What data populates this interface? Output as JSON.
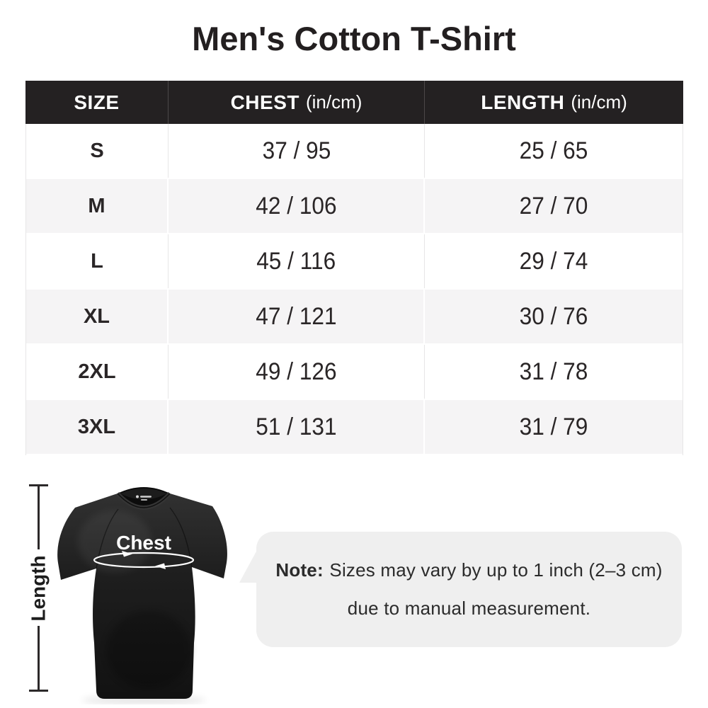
{
  "title": "Men's Cotton T-Shirt",
  "table": {
    "headers": [
      {
        "main": "SIZE",
        "sub": ""
      },
      {
        "main": "CHEST",
        "sub": "(in/cm)"
      },
      {
        "main": "LENGTH",
        "sub": "(in/cm)"
      }
    ],
    "rows": [
      {
        "size": "S",
        "chest": "37 / 95",
        "length": "25 / 65"
      },
      {
        "size": "M",
        "chest": "42 / 106",
        "length": "27 / 70"
      },
      {
        "size": "L",
        "chest": "45 / 116",
        "length": "29 / 74"
      },
      {
        "size": "XL",
        "chest": "47 / 121",
        "length": "30 / 76"
      },
      {
        "size": "2XL",
        "chest": "49 / 126",
        "length": "31 / 78"
      },
      {
        "size": "3XL",
        "chest": "51 / 131",
        "length": "31 / 79"
      }
    ]
  },
  "diagram": {
    "chest_label": "Chest",
    "length_label": "Length"
  },
  "note": {
    "prefix": "Note:",
    "line1": "Sizes may vary by up to 1 inch (2–3 cm)",
    "line2": "due to manual measurement."
  },
  "colors": {
    "header_bg": "#242122",
    "row_alt_bg": "#f5f4f5",
    "bubble_bg": "#efefef",
    "cell_text": "#2a2627",
    "shirt": "#1b1b1b",
    "measure_line": "#ffffff"
  },
  "chart_data": {
    "type": "table",
    "title": "Men's Cotton T-Shirt",
    "columns": [
      "SIZE",
      "CHEST (in/cm)",
      "LENGTH (in/cm)"
    ],
    "rows": [
      [
        "S",
        "37 / 95",
        "25 / 65"
      ],
      [
        "M",
        "42 / 106",
        "27 / 70"
      ],
      [
        "L",
        "45 / 116",
        "29 / 74"
      ],
      [
        "XL",
        "47 / 121",
        "30 / 76"
      ],
      [
        "2XL",
        "49 / 126",
        "31 / 78"
      ],
      [
        "3XL",
        "51 / 131",
        "31 / 79"
      ]
    ],
    "note": "Note: Sizes may vary by up to 1 inch (2–3 cm) due to manual measurement."
  }
}
